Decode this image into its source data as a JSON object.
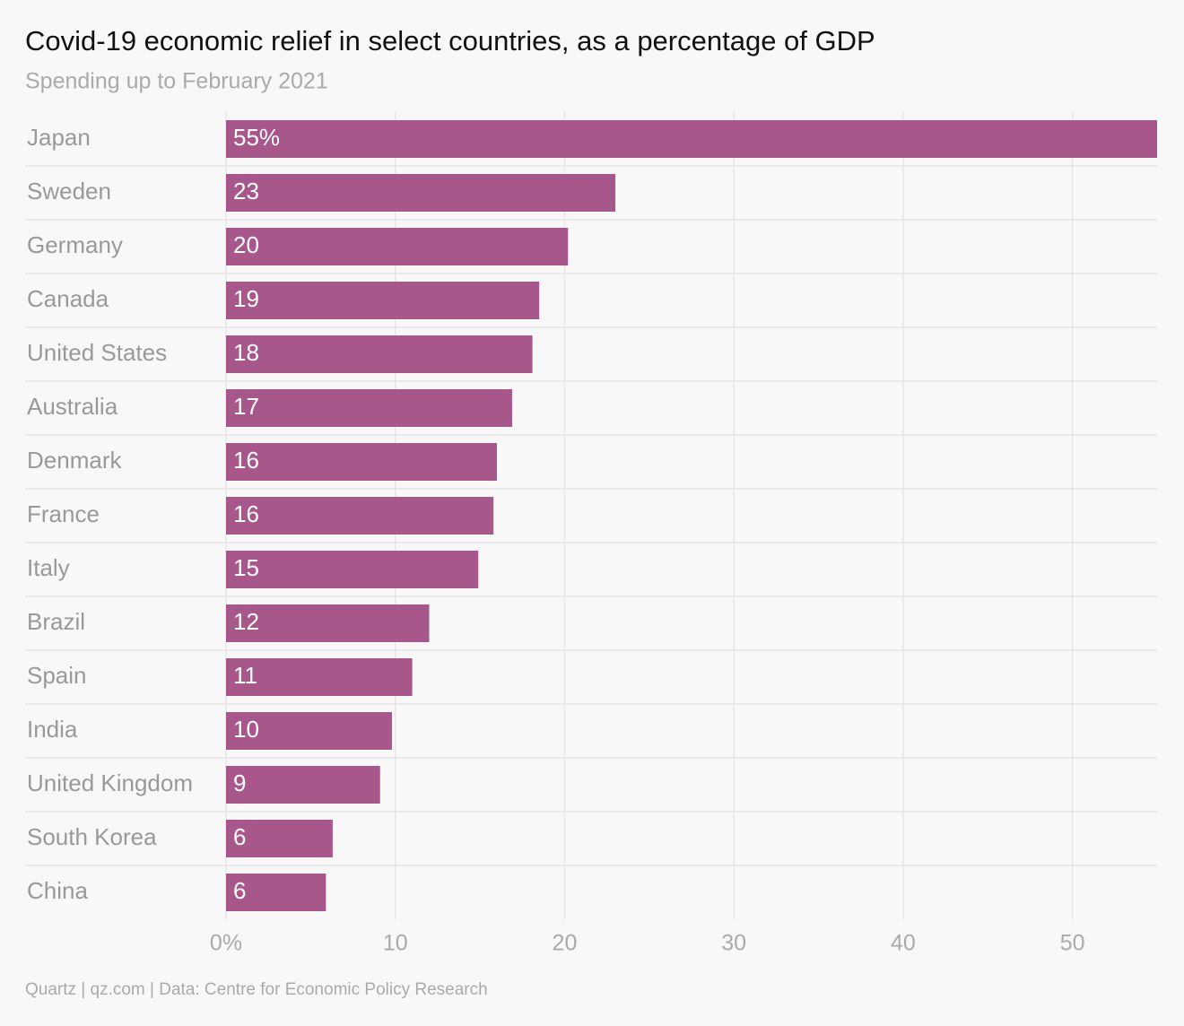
{
  "chart_data": {
    "type": "barh",
    "title": "Covid-19 economic relief in select countries, as a percentage of GDP",
    "subtitle": "Spending up to February 2021",
    "source": "Quartz | qz.com | Data: Centre for Economic Policy Research",
    "categories": [
      "Japan",
      "Sweden",
      "Germany",
      "Canada",
      "United States",
      "Australia",
      "Denmark",
      "France",
      "Italy",
      "Brazil",
      "Spain",
      "India",
      "United Kingdom",
      "South Korea",
      "China"
    ],
    "values": [
      55,
      23,
      20.2,
      18.5,
      18.1,
      16.9,
      16.0,
      15.8,
      14.9,
      12,
      11,
      9.8,
      9.1,
      6.3,
      5.9
    ],
    "value_labels": [
      "55%",
      "23",
      "20",
      "19",
      "18",
      "17",
      "16",
      "16",
      "15",
      "12",
      "11",
      "10",
      "9",
      "6",
      "6"
    ],
    "color": "#a8578a",
    "xlim": [
      0,
      55
    ],
    "xticks": [
      {
        "value": 0,
        "label": "0%"
      },
      10,
      20,
      30,
      40,
      50
    ],
    "grid": true
  }
}
